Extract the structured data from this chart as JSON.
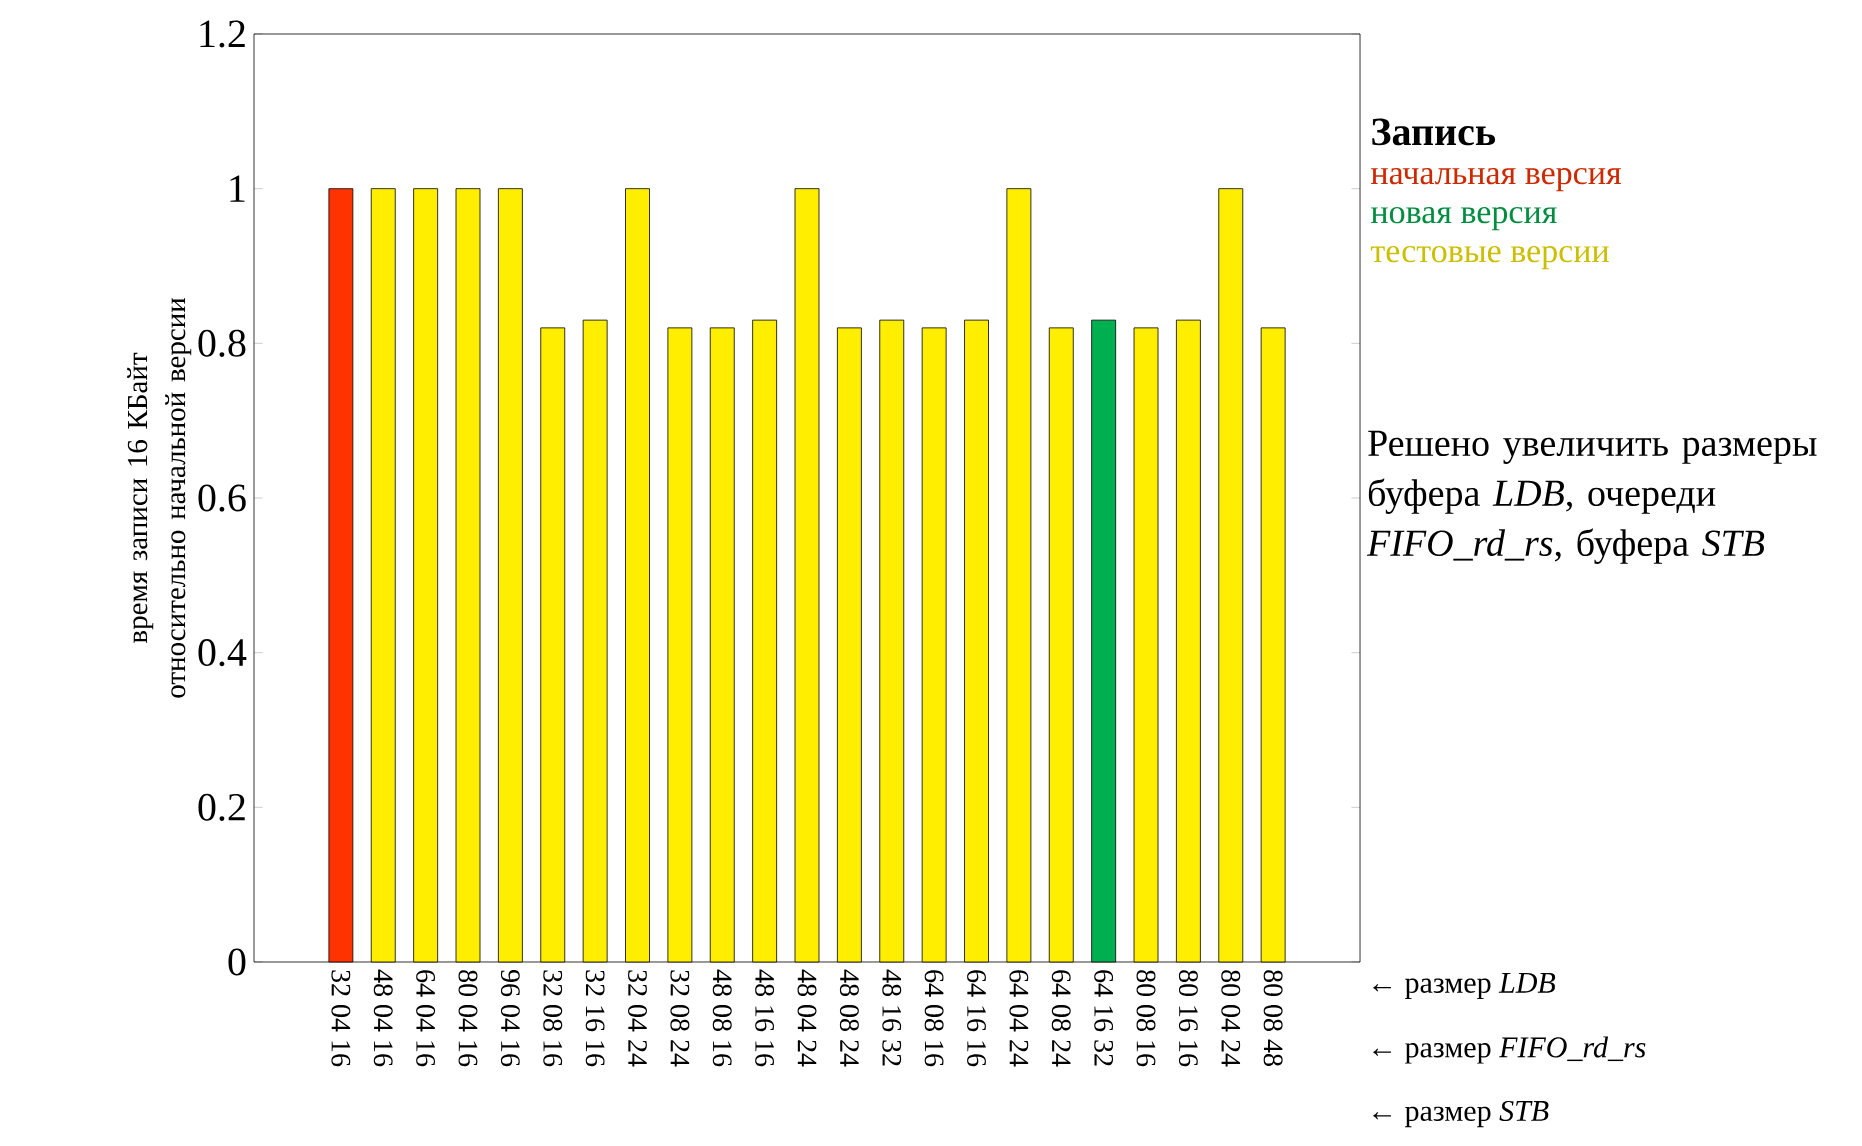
{
  "chart_data": {
    "type": "bar",
    "ylabel": "время записи 16 КБайт относительно начальной версии",
    "legend_title": "Запись",
    "categories": [
      "32 04 16",
      "48 04 16",
      "64 04 16",
      "80 04 16",
      "96 04 16",
      "32 08 16",
      "32 16 16",
      "32 04 24",
      "32 08 24",
      "48 08 16",
      "48 16 16",
      "48 04 24",
      "48 08 24",
      "48 16 32",
      "64 08 16",
      "64 16 16",
      "64 04 24",
      "64 08 24",
      "64 16 32",
      "80 08 16",
      "80 16 16",
      "80 04 24",
      "80 08 48"
    ],
    "series": [
      {
        "name": "начальная версия",
        "color": "#ff3300",
        "values": [
          1,
          null,
          null,
          null,
          null,
          null,
          null,
          null,
          null,
          null,
          null,
          null,
          null,
          null,
          null,
          null,
          null,
          null,
          null,
          null,
          null,
          null,
          null
        ]
      },
      {
        "name": "новая версия",
        "color": "#00b050",
        "values": [
          null,
          null,
          null,
          null,
          null,
          null,
          null,
          null,
          null,
          null,
          null,
          null,
          null,
          null,
          null,
          null,
          null,
          null,
          0.83,
          null,
          null,
          null,
          null
        ]
      },
      {
        "name": "тестовые версии",
        "color": "#ffee00",
        "values": [
          null,
          1,
          1,
          1,
          1,
          0.82,
          0.83,
          1,
          0.82,
          0.82,
          0.83,
          1,
          0.82,
          0.83,
          0.82,
          0.83,
          1,
          0.82,
          null,
          0.82,
          0.83,
          1,
          0.82
        ]
      }
    ],
    "ylim": [
      0,
      1.2
    ],
    "yticks": [
      0,
      0.2,
      0.4,
      0.6,
      0.8,
      1,
      1.2
    ],
    "legend": "right",
    "grid": false,
    "annotations": [
      "Решено увеличить размеры буфера *LDB*, очереди *FIFO_rd_rs*, буфера *STB*",
      "← размер *LDB*",
      "← размер *FIFO_rd_rs*",
      "← размер *STB*"
    ]
  }
}
